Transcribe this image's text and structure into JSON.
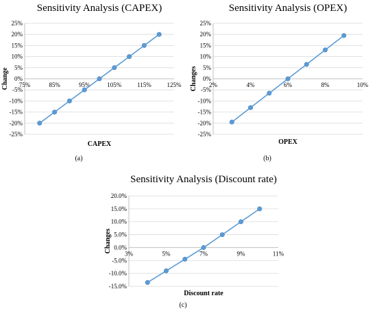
{
  "chart_data": [
    {
      "type": "line",
      "title": "Sensitivity Analysis (CAPEX)",
      "xlabel": "CAPEX",
      "ylabel": "Change",
      "caption": "(a)",
      "xlim": [
        75,
        125
      ],
      "ylim": [
        -25,
        25
      ],
      "xticks": [
        75,
        85,
        95,
        105,
        115,
        125
      ],
      "xtick_labels": [
        "75%",
        "85%",
        "95%",
        "105%",
        "115%",
        "125%"
      ],
      "yticks": [
        25,
        20,
        15,
        10,
        5,
        0,
        -5,
        -10,
        -15,
        -20,
        -25
      ],
      "ytick_labels": [
        "25%",
        "20%",
        "15%",
        "10%",
        "5%",
        "0%",
        "-5%",
        "-10%",
        "-15%",
        "-20%",
        "-25%"
      ],
      "grid": true,
      "series": [
        {
          "x": [
            80,
            85,
            90,
            95,
            100,
            105,
            110,
            115,
            120
          ],
          "values": [
            -20,
            -15,
            -10,
            -5,
            0,
            5,
            10,
            15,
            20
          ]
        }
      ]
    },
    {
      "type": "line",
      "title": "Sensitivity Analysis (OPEX)",
      "xlabel": "OPEX",
      "ylabel": "Changes",
      "caption": "(b)",
      "xlim": [
        2,
        10
      ],
      "ylim": [
        -25,
        25
      ],
      "xticks": [
        2,
        4,
        6,
        8,
        10
      ],
      "xtick_labels": [
        "2%",
        "4%",
        "6%",
        "8%",
        "10%"
      ],
      "yticks": [
        25,
        20,
        15,
        10,
        5,
        0,
        -5,
        -10,
        -15,
        -20,
        -25
      ],
      "ytick_labels": [
        "25%",
        "20%",
        "15%",
        "10%",
        "5%",
        "0%",
        "-5%",
        "-10%",
        "-15%",
        "-20%",
        "-25%"
      ],
      "grid": true,
      "series": [
        {
          "x": [
            3,
            4,
            5,
            6,
            7,
            8,
            9
          ],
          "values": [
            -19.5,
            -13,
            -6.5,
            0,
            6.5,
            13,
            19.5
          ]
        }
      ]
    },
    {
      "type": "line",
      "title": "Sensitivity Analysis (Discount rate)",
      "xlabel": "Discount rate",
      "ylabel": "Changes",
      "caption": "(c)",
      "xlim": [
        3,
        11
      ],
      "ylim": [
        -15,
        20
      ],
      "xticks": [
        3,
        5,
        7,
        9,
        11
      ],
      "xtick_labels": [
        "3%",
        "5%",
        "7%",
        "9%",
        "11%"
      ],
      "yticks": [
        20,
        15,
        10,
        5,
        0,
        -5,
        -10,
        -15
      ],
      "ytick_labels": [
        "20.0%",
        "15.0%",
        "10.0%",
        "5.0%",
        "0.0%",
        "-5.0%",
        "-10.0%",
        "-15.0%"
      ],
      "grid": true,
      "series": [
        {
          "x": [
            4,
            5,
            6,
            7,
            8,
            9,
            10
          ],
          "values": [
            -13.5,
            -9,
            -4.5,
            0,
            5,
            10,
            15
          ]
        }
      ]
    }
  ]
}
